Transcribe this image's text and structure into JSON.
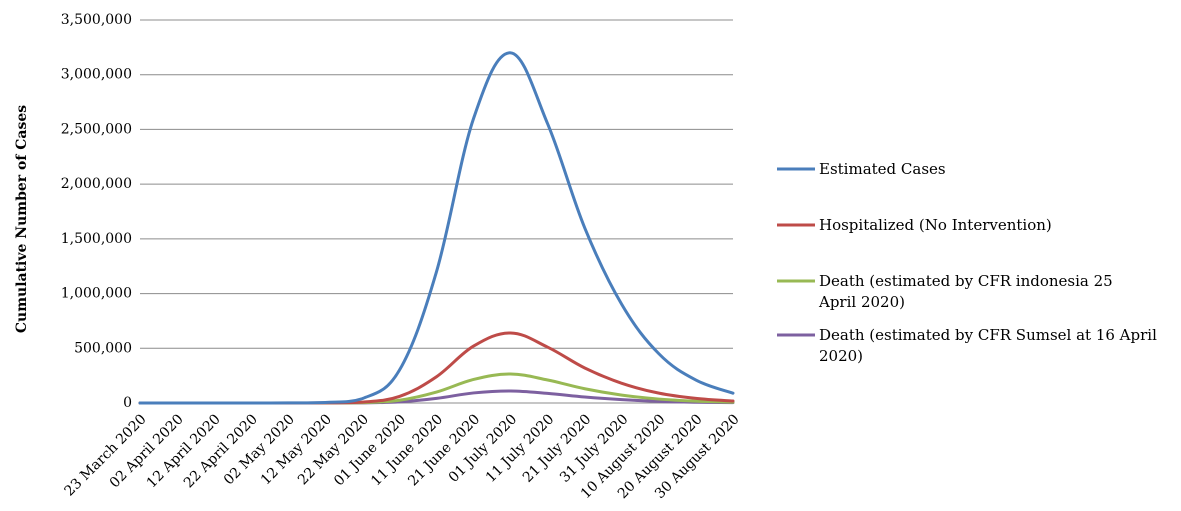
{
  "chart_data": {
    "type": "line",
    "title": "",
    "xlabel": "",
    "ylabel": "Cumulative Number of Cases",
    "ylim": [
      0,
      3500000
    ],
    "yticks": [
      "0",
      "500,000",
      "1,000,000",
      "1,500,000",
      "2,000,000",
      "2,500,000",
      "3,000,000",
      "3,500,000"
    ],
    "grid": true,
    "legend_position": "right",
    "x": [
      "23 March 2020",
      "02 April 2020",
      "12 April 2020",
      "22 April 2020",
      "02 May 2020",
      "12 May 2020",
      "22 May 2020",
      "01 June 2020",
      "11 June 2020",
      "21 June 2020",
      "01 July 2020",
      "11 July 2020",
      "21 July 2020",
      "31 July 2020",
      "10 August 2020",
      "20 August 2020",
      "30 August 2020"
    ],
    "series": [
      {
        "name": "Estimated Cases",
        "color": "#4a7ebb",
        "values": [
          0,
          0,
          0,
          0,
          1000,
          5000,
          40000,
          300000,
          1200000,
          2600000,
          3200000,
          2550000,
          1600000,
          900000,
          450000,
          210000,
          90000
        ]
      },
      {
        "name": "Hospitalized (No Intervention)",
        "color": "#be4b48",
        "values": [
          0,
          0,
          0,
          0,
          0,
          1000,
          8000,
          60000,
          240000,
          520000,
          640000,
          510000,
          320000,
          180000,
          90000,
          42000,
          18000
        ]
      },
      {
        "name": "Death (estimated by CFR indonesia 25 April 2020)",
        "legend_lines": [
          "Death (estimated by CFR indonesia 25",
          "April 2020)"
        ],
        "color": "#98b954",
        "values": [
          0,
          0,
          0,
          0,
          0,
          500,
          3500,
          25000,
          100000,
          215000,
          265000,
          210000,
          130000,
          72000,
          36000,
          17000,
          7500
        ]
      },
      {
        "name": "Death (estimated by CFR Sumsel at 16 April 2020)",
        "legend_lines": [
          "Death (estimated by CFR Sumsel at 16 April",
          "2020)"
        ],
        "color": "#7d60a0",
        "values": [
          0,
          0,
          0,
          0,
          0,
          200,
          1500,
          10000,
          42000,
          92000,
          110000,
          88000,
          55000,
          31000,
          15000,
          7000,
          3000
        ]
      }
    ]
  }
}
